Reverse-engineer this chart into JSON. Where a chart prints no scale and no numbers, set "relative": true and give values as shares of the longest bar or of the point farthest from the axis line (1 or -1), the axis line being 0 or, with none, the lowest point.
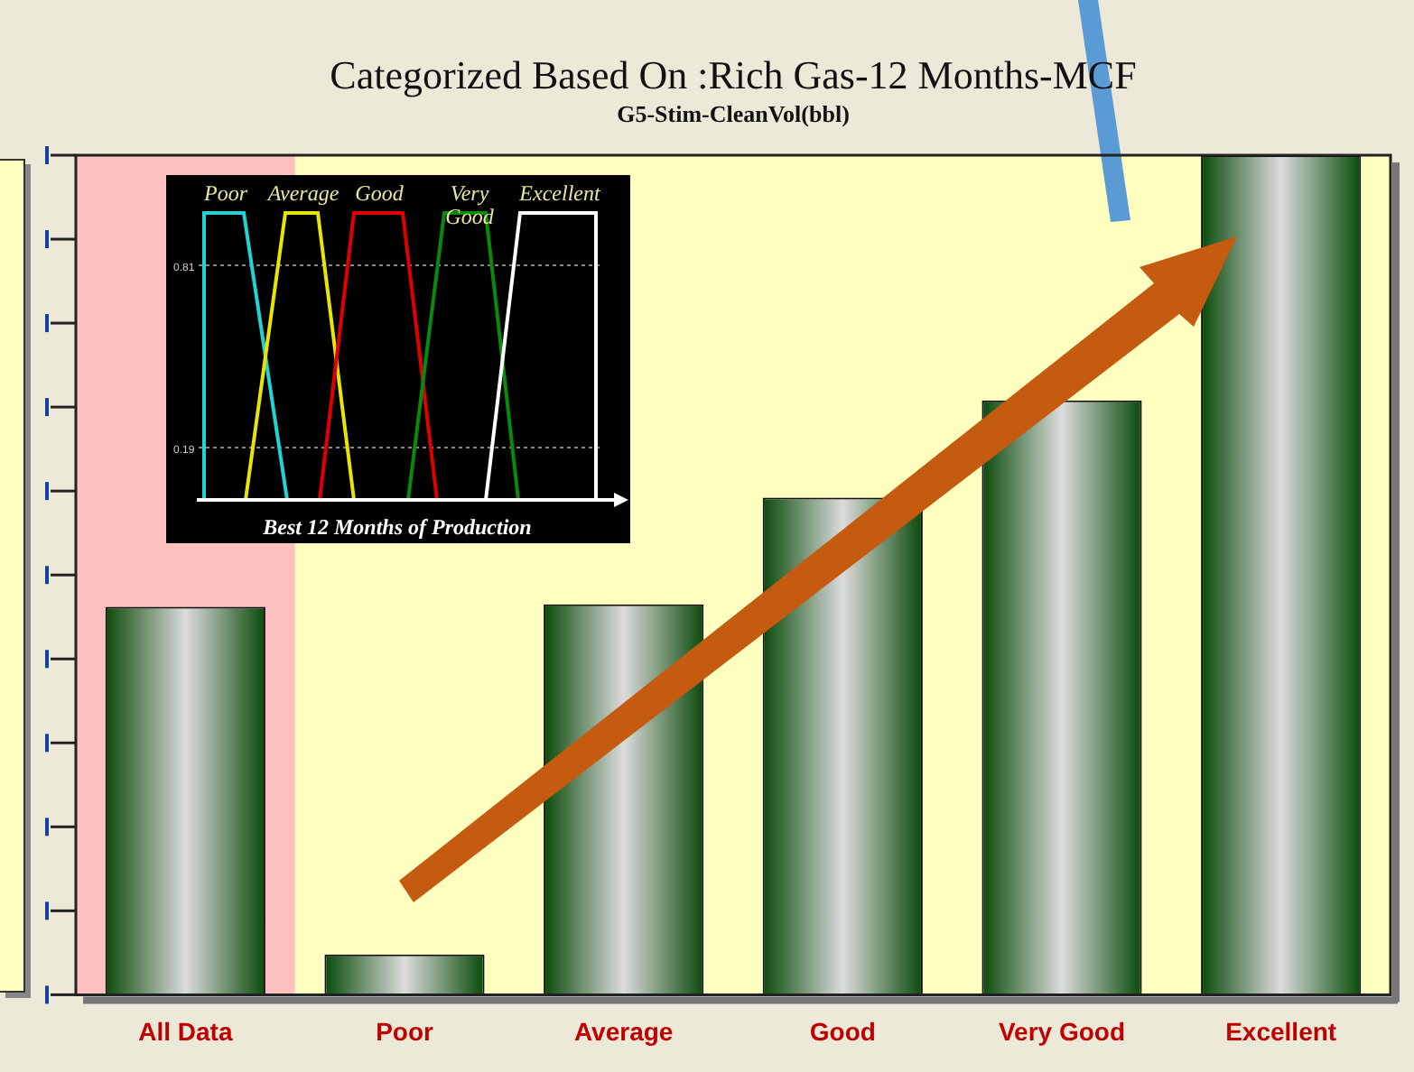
{
  "chart_data": {
    "type": "bar",
    "title": "Categorized Based On :Rich Gas-12 Months-MCF",
    "subtitle": "G5-Stim-CleanVol(bbl)",
    "categories": [
      "All Data",
      "Poor",
      "Average",
      "Good",
      "Very Good",
      "Excellent"
    ],
    "values": [
      0.462,
      0.048,
      0.465,
      0.592,
      0.708,
      1
    ],
    "color": "#0a4a0a",
    "relative": true,
    "grid": false,
    "legend": false,
    "bands": [
      {
        "axis": "x",
        "from": "All Data",
        "to": "All Data",
        "color": "#ffc0c0"
      }
    ],
    "annotations": [
      "Poor",
      "Average",
      "Good",
      "Very Good",
      "Excellent",
      "0.81",
      "0.19",
      "Best 12 Months of Production"
    ]
  }
}
